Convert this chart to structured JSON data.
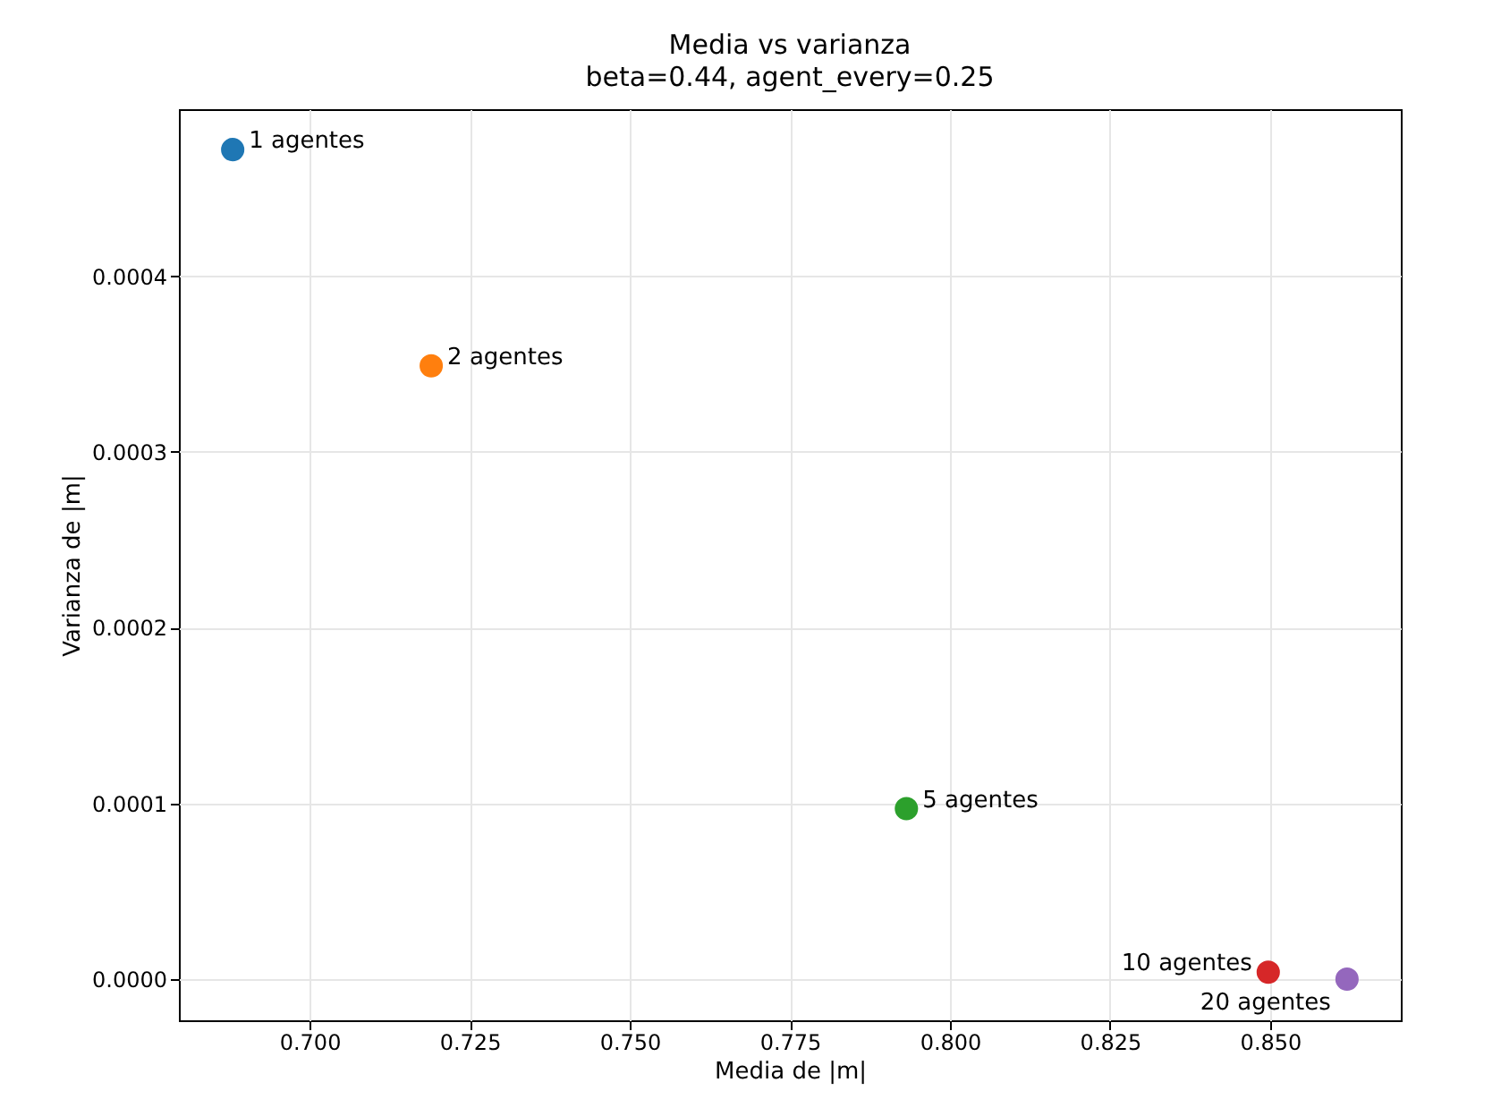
{
  "chart_data": {
    "type": "scatter",
    "title": "Media vs varianza",
    "subtitle": "beta=0.44, agent_every=0.25",
    "xlabel": "Media de |m|",
    "ylabel": "Varianza de |m|",
    "series": [
      {
        "name": "1 agentes",
        "color": "#1f77b4",
        "x": [
          0.688
        ],
        "values": [
          0.000472
        ]
      },
      {
        "name": "2 agentes",
        "color": "#ff7f0e",
        "x": [
          0.719
        ],
        "values": [
          0.000349
        ]
      },
      {
        "name": "5 agentes",
        "color": "#2ca02c",
        "x": [
          0.7932
        ],
        "values": [
          9.7e-05
        ]
      },
      {
        "name": "10 agentes",
        "color": "#d62728",
        "x": [
          0.8497
        ],
        "values": [
          4e-06
        ]
      },
      {
        "name": "20 agentes",
        "color": "#9467bd",
        "x": [
          0.862
        ],
        "values": [
          0
        ]
      }
    ],
    "xlim": [
      0.6796,
      0.8704
    ],
    "ylim": [
      -2.34e-05,
      0.000495
    ],
    "xticks": [
      {
        "value": 0.7,
        "label": "0.700"
      },
      {
        "value": 0.725,
        "label": "0.725"
      },
      {
        "value": 0.75,
        "label": "0.750"
      },
      {
        "value": 0.775,
        "label": "0.775"
      },
      {
        "value": 0.8,
        "label": "0.800"
      },
      {
        "value": 0.825,
        "label": "0.825"
      },
      {
        "value": 0.85,
        "label": "0.850"
      }
    ],
    "yticks": [
      {
        "value": 0,
        "label": "0.0000"
      },
      {
        "value": 0.0001,
        "label": "0.0001"
      },
      {
        "value": 0.0002,
        "label": "0.0002"
      },
      {
        "value": 0.0003,
        "label": "0.0003"
      },
      {
        "value": 0.0004,
        "label": "0.0004"
      }
    ],
    "grid": true,
    "marker": "circle",
    "legend": false
  }
}
